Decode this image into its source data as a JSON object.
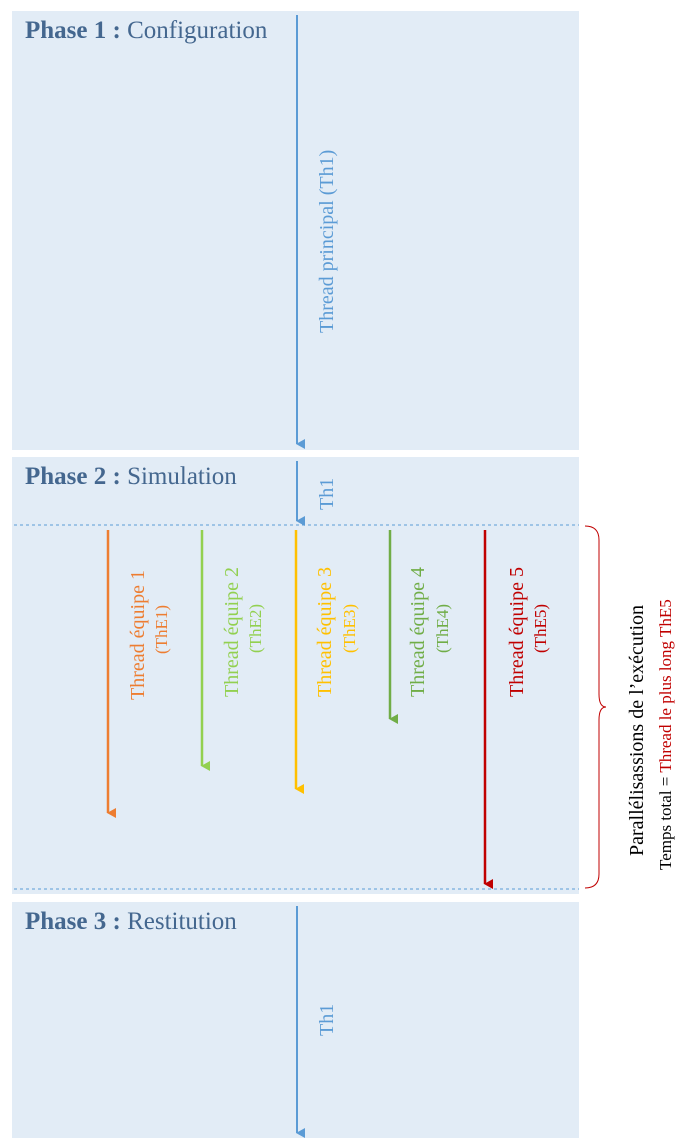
{
  "colors": {
    "panel": "#e2ecf6",
    "main_thread": "#5b9bd5",
    "phase_title": "#44678f",
    "team1": "#ed7d31",
    "team2": "#92d050",
    "team3": "#ffc000",
    "team4": "#70ad47",
    "team5": "#c00000"
  },
  "phase1": {
    "bold": "Phase 1 :",
    "name": "Configuration",
    "thread_label": "Thread principal (Th1)"
  },
  "phase2": {
    "bold": "Phase 2 :",
    "name": "Simulation",
    "thread_label": "Th1",
    "teams": [
      {
        "label": "Thread équipe 1",
        "id": "(ThE1)",
        "color": "#ed7d31"
      },
      {
        "label": "Thread équipe 2",
        "id": "(ThE2)",
        "color": "#92d050"
      },
      {
        "label": "Thread équipe 3",
        "id": "(ThE3)",
        "color": "#ffc000"
      },
      {
        "label": "Thread équipe 4",
        "id": "(ThE4)",
        "color": "#70ad47"
      },
      {
        "label": "Thread équipe 5",
        "id": "(ThE5)",
        "color": "#c00000"
      }
    ],
    "side_title": "Parallélisassions  de l’exécution",
    "side_total_prefix": "Temps total = ",
    "side_total_value": "Thread le plus long ThE5"
  },
  "phase3": {
    "bold": "Phase 3 :",
    "name": "Restitution",
    "thread_label": "Th1"
  }
}
